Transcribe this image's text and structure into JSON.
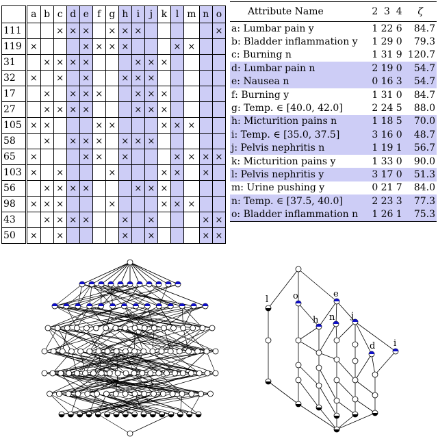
{
  "context_table": {
    "columns": [
      "a",
      "b",
      "c",
      "d",
      "e",
      "f",
      "g",
      "h",
      "i",
      "j",
      "k",
      "l",
      "m",
      "n",
      "o"
    ],
    "highlighted_columns": [
      "d",
      "e",
      "h",
      "i",
      "j",
      "l",
      "n",
      "o"
    ],
    "rows": [
      {
        "obj": "111",
        "x": [
          0,
          0,
          1,
          1,
          1,
          0,
          1,
          1,
          1,
          0,
          0,
          0,
          0,
          0,
          1
        ]
      },
      {
        "obj": "119",
        "x": [
          1,
          0,
          0,
          0,
          1,
          1,
          1,
          1,
          0,
          0,
          0,
          1,
          1,
          0,
          0
        ]
      },
      {
        "obj": "31",
        "x": [
          0,
          1,
          1,
          1,
          1,
          0,
          0,
          0,
          1,
          1,
          1,
          0,
          0,
          0,
          0
        ]
      },
      {
        "obj": "32",
        "x": [
          1,
          0,
          1,
          0,
          1,
          0,
          0,
          1,
          1,
          1,
          0,
          0,
          0,
          0,
          0
        ]
      },
      {
        "obj": "17",
        "x": [
          0,
          1,
          0,
          1,
          1,
          1,
          0,
          0,
          1,
          1,
          1,
          0,
          0,
          0,
          0
        ]
      },
      {
        "obj": "27",
        "x": [
          0,
          1,
          1,
          1,
          1,
          0,
          0,
          0,
          1,
          1,
          1,
          0,
          0,
          0,
          0
        ]
      },
      {
        "obj": "105",
        "x": [
          1,
          1,
          0,
          0,
          0,
          1,
          1,
          0,
          0,
          0,
          1,
          1,
          1,
          0,
          0
        ]
      },
      {
        "obj": "58",
        "x": [
          0,
          1,
          0,
          1,
          1,
          1,
          0,
          1,
          1,
          1,
          0,
          0,
          0,
          0,
          0
        ]
      },
      {
        "obj": "65",
        "x": [
          1,
          0,
          0,
          0,
          1,
          1,
          0,
          1,
          0,
          0,
          0,
          1,
          1,
          1,
          1
        ]
      },
      {
        "obj": "103",
        "x": [
          1,
          0,
          1,
          0,
          0,
          0,
          1,
          0,
          0,
          0,
          1,
          1,
          0,
          1,
          0
        ]
      },
      {
        "obj": "56",
        "x": [
          0,
          1,
          1,
          1,
          1,
          0,
          0,
          0,
          1,
          1,
          1,
          0,
          0,
          0,
          0
        ]
      },
      {
        "obj": "98",
        "x": [
          1,
          1,
          1,
          0,
          0,
          0,
          1,
          0,
          0,
          0,
          1,
          1,
          1,
          0,
          0
        ]
      },
      {
        "obj": "43",
        "x": [
          0,
          1,
          1,
          1,
          1,
          0,
          0,
          1,
          0,
          1,
          0,
          0,
          0,
          1,
          1
        ]
      },
      {
        "obj": "50",
        "x": [
          1,
          0,
          1,
          0,
          0,
          0,
          0,
          1,
          0,
          1,
          0,
          0,
          0,
          1,
          1
        ]
      }
    ],
    "cross_glyph": "×"
  },
  "attribute_table": {
    "headers": {
      "name": "Attribute Name",
      "c2": "2",
      "c3": "3",
      "c4": "4",
      "zeta": "ζ"
    },
    "rows": [
      {
        "name": "a:  Lumbar pain y",
        "c2": "1",
        "c3": "22",
        "c4": "6",
        "zeta": "84.7",
        "hl": false
      },
      {
        "name": "b:  Bladder inflammation y",
        "c2": "1",
        "c3": "29",
        "c4": "0",
        "zeta": "79.3",
        "hl": false
      },
      {
        "name": "c:  Burning n",
        "c2": "1",
        "c3": "31",
        "c4": "9",
        "zeta": "120.7",
        "hl": false
      },
      {
        "name": "d:  Lumbar pain n",
        "c2": "2",
        "c3": "19",
        "c4": "0",
        "zeta": "54.7",
        "hl": true
      },
      {
        "name": "e:  Nausea n",
        "c2": "0",
        "c3": "16",
        "c4": "3",
        "zeta": "54.7",
        "hl": true
      },
      {
        "name": "f:  Burning y",
        "c2": "1",
        "c3": "31",
        "c4": "0",
        "zeta": "84.7",
        "hl": false
      },
      {
        "name": "g:  Temp. ∈ [40.0,  42.0]",
        "c2": "2",
        "c3": "24",
        "c4": "5",
        "zeta": "88.0",
        "hl": false
      },
      {
        "name": "h:  Micturition pains n",
        "c2": "1",
        "c3": "18",
        "c4": "5",
        "zeta": "70.0",
        "hl": true
      },
      {
        "name": "i:  Temp. ∈ [35.0,  37.5]",
        "c2": "3",
        "c3": "16",
        "c4": "0",
        "zeta": "48.7",
        "hl": true
      },
      {
        "name": "j:  Pelvis nephritis n",
        "c2": "1",
        "c3": "19",
        "c4": "1",
        "zeta": "56.7",
        "hl": true
      },
      {
        "name": "k:  Micturition pains y",
        "c2": "1",
        "c3": "33",
        "c4": "0",
        "zeta": "90.0",
        "hl": false
      },
      {
        "name": "l:  Pelvis nephritis y",
        "c2": "3",
        "c3": "17",
        "c4": "0",
        "zeta": "51.3",
        "hl": true
      },
      {
        "name": "m:  Urine pushing y",
        "c2": "0",
        "c3": "21",
        "c4": "7",
        "zeta": "84.0",
        "hl": false
      },
      {
        "name": "n:  Temp. ∈ [37.5,  40.0]",
        "c2": "2",
        "c3": "23",
        "c4": "3",
        "zeta": "77.3",
        "hl": true
      },
      {
        "name": "o:  Bladder inflammation n",
        "c2": "1",
        "c3": "26",
        "c4": "1",
        "zeta": "75.3",
        "hl": true
      }
    ]
  },
  "small_lattice": {
    "node_labels": [
      "l",
      "o",
      "e",
      "h",
      "n",
      "j",
      "d",
      "i"
    ],
    "colors": {
      "blue": "#1010c8",
      "black": "#000000",
      "white": "#ffffff"
    }
  }
}
